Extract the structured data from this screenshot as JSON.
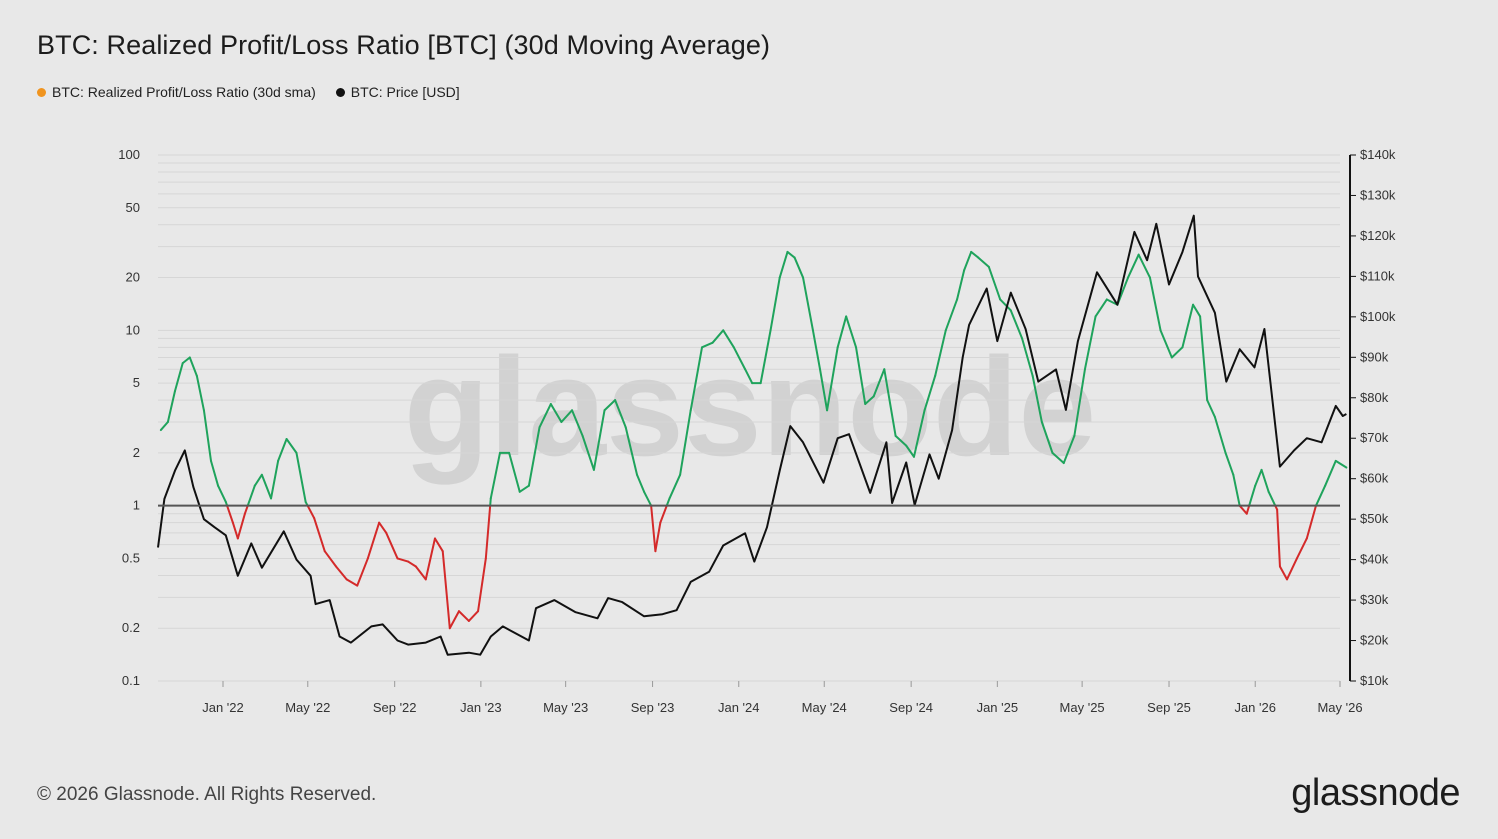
{
  "title": "BTC: Realized Profit/Loss Ratio [BTC] (30d Moving Average)",
  "legend": [
    {
      "label": "BTC: Realized Profit/Loss Ratio (30d sma)",
      "color": "#f0941f"
    },
    {
      "label": "BTC: Price [USD]",
      "color": "#111111"
    }
  ],
  "footer": "© 2026 Glassnode. All Rights Reserved.",
  "brand": "glassnode",
  "watermark": "glassnode",
  "chart_data": {
    "type": "line",
    "x_ticks": [
      "Jan '22",
      "May '22",
      "Sep '22",
      "Jan '23",
      "May '23",
      "Sep '23",
      "Jan '24",
      "May '24",
      "Sep '24",
      "Jan '25",
      "May '25",
      "Sep '25",
      "Jan '26",
      "May '26"
    ],
    "x_tick_dates": [
      "2022-01",
      "2022-05",
      "2022-09",
      "2023-01",
      "2023-05",
      "2023-09",
      "2024-01",
      "2024-05",
      "2024-09",
      "2025-01",
      "2025-05",
      "2025-09",
      "2026-01",
      "2026-05"
    ],
    "x_range": [
      "2021-10",
      "2026-05"
    ],
    "left_axis": {
      "scale": "log",
      "range": [
        0.1,
        100
      ],
      "ticks": [
        {
          "v": 100,
          "label": "100"
        },
        {
          "v": 50,
          "label": "50"
        },
        {
          "v": 20,
          "label": "20"
        },
        {
          "v": 10,
          "label": "10"
        },
        {
          "v": 5,
          "label": "5"
        },
        {
          "v": 2,
          "label": "2"
        },
        {
          "v": 1,
          "label": "1"
        },
        {
          "v": 0.5,
          "label": "0.5"
        },
        {
          "v": 0.2,
          "label": "0.2"
        },
        {
          "v": 0.1,
          "label": "0.1"
        }
      ]
    },
    "right_axis": {
      "scale": "linear",
      "range": [
        10000,
        140000
      ],
      "ticks": [
        {
          "v": 140000,
          "label": "$140k"
        },
        {
          "v": 130000,
          "label": "$130k"
        },
        {
          "v": 120000,
          "label": "$120k"
        },
        {
          "v": 110000,
          "label": "$110k"
        },
        {
          "v": 100000,
          "label": "$100k"
        },
        {
          "v": 90000,
          "label": "$90k"
        },
        {
          "v": 80000,
          "label": "$80k"
        },
        {
          "v": 70000,
          "label": "$70k"
        },
        {
          "v": 60000,
          "label": "$60k"
        },
        {
          "v": 50000,
          "label": "$50k"
        },
        {
          "v": 40000,
          "label": "$40k"
        },
        {
          "v": 30000,
          "label": "$30k"
        },
        {
          "v": 20000,
          "label": "$20k"
        },
        {
          "v": 10000,
          "label": "$10k"
        }
      ]
    },
    "reference_line": {
      "value": 1,
      "axis": "left",
      "color": "#555555"
    },
    "colors": {
      "above_one": "#1fa35c",
      "below_one": "#d42a2a",
      "price": "#111111"
    },
    "series": [
      {
        "name": "BTC: Realized Profit/Loss Ratio (30d sma)",
        "axis": "left",
        "points": [
          [
            "2021-10-05",
            2.7
          ],
          [
            "2021-10-15",
            3.0
          ],
          [
            "2021-10-25",
            4.5
          ],
          [
            "2021-11-05",
            6.5
          ],
          [
            "2021-11-15",
            7.0
          ],
          [
            "2021-11-25",
            5.5
          ],
          [
            "2021-12-05",
            3.5
          ],
          [
            "2021-12-15",
            1.8
          ],
          [
            "2021-12-25",
            1.3
          ],
          [
            "2022-01-05",
            1.05
          ],
          [
            "2022-01-15",
            0.8
          ],
          [
            "2022-01-22",
            0.65
          ],
          [
            "2022-02-01",
            0.9
          ],
          [
            "2022-02-15",
            1.3
          ],
          [
            "2022-02-25",
            1.5
          ],
          [
            "2022-03-10",
            1.1
          ],
          [
            "2022-03-20",
            1.8
          ],
          [
            "2022-04-01",
            2.4
          ],
          [
            "2022-04-15",
            2.0
          ],
          [
            "2022-04-28",
            1.05
          ],
          [
            "2022-05-10",
            0.85
          ],
          [
            "2022-05-25",
            0.55
          ],
          [
            "2022-06-10",
            0.45
          ],
          [
            "2022-06-25",
            0.38
          ],
          [
            "2022-07-10",
            0.35
          ],
          [
            "2022-07-25",
            0.5
          ],
          [
            "2022-08-10",
            0.8
          ],
          [
            "2022-08-20",
            0.7
          ],
          [
            "2022-09-05",
            0.5
          ],
          [
            "2022-09-20",
            0.48
          ],
          [
            "2022-10-01",
            0.45
          ],
          [
            "2022-10-15",
            0.38
          ],
          [
            "2022-10-28",
            0.65
          ],
          [
            "2022-11-08",
            0.55
          ],
          [
            "2022-11-18",
            0.2
          ],
          [
            "2022-12-01",
            0.25
          ],
          [
            "2022-12-15",
            0.22
          ],
          [
            "2022-12-28",
            0.25
          ],
          [
            "2023-01-08",
            0.5
          ],
          [
            "2023-01-15",
            1.1
          ],
          [
            "2023-01-28",
            2.0
          ],
          [
            "2023-02-10",
            2.0
          ],
          [
            "2023-02-25",
            1.2
          ],
          [
            "2023-03-10",
            1.3
          ],
          [
            "2023-03-25",
            2.8
          ],
          [
            "2023-04-10",
            3.8
          ],
          [
            "2023-04-25",
            3.0
          ],
          [
            "2023-05-10",
            3.5
          ],
          [
            "2023-05-25",
            2.5
          ],
          [
            "2023-06-10",
            1.6
          ],
          [
            "2023-06-25",
            3.5
          ],
          [
            "2023-07-10",
            4.0
          ],
          [
            "2023-07-25",
            2.8
          ],
          [
            "2023-08-10",
            1.5
          ],
          [
            "2023-08-20",
            1.2
          ],
          [
            "2023-08-30",
            1.0
          ],
          [
            "2023-09-05",
            0.55
          ],
          [
            "2023-09-12",
            0.8
          ],
          [
            "2023-09-25",
            1.1
          ],
          [
            "2023-10-10",
            1.5
          ],
          [
            "2023-10-25",
            3.5
          ],
          [
            "2023-11-10",
            8.0
          ],
          [
            "2023-11-25",
            8.5
          ],
          [
            "2023-12-10",
            10.0
          ],
          [
            "2023-12-25",
            8.0
          ],
          [
            "2024-01-10",
            6.0
          ],
          [
            "2024-01-20",
            5.0
          ],
          [
            "2024-02-01",
            5.0
          ],
          [
            "2024-02-15",
            10.0
          ],
          [
            "2024-02-28",
            20.0
          ],
          [
            "2024-03-10",
            28.0
          ],
          [
            "2024-03-20",
            26.0
          ],
          [
            "2024-04-01",
            20.0
          ],
          [
            "2024-04-15",
            10.0
          ],
          [
            "2024-04-25",
            6.0
          ],
          [
            "2024-05-05",
            3.5
          ],
          [
            "2024-05-20",
            8.0
          ],
          [
            "2024-06-01",
            12.0
          ],
          [
            "2024-06-15",
            8.0
          ],
          [
            "2024-06-28",
            3.8
          ],
          [
            "2024-07-10",
            4.2
          ],
          [
            "2024-07-25",
            6.0
          ],
          [
            "2024-08-10",
            2.5
          ],
          [
            "2024-08-25",
            2.2
          ],
          [
            "2024-09-05",
            1.9
          ],
          [
            "2024-09-20",
            3.5
          ],
          [
            "2024-10-05",
            5.5
          ],
          [
            "2024-10-20",
            10.0
          ],
          [
            "2024-11-05",
            15.0
          ],
          [
            "2024-11-15",
            22.0
          ],
          [
            "2024-11-25",
            28.0
          ],
          [
            "2024-12-05",
            26.0
          ],
          [
            "2024-12-20",
            23.0
          ],
          [
            "2025-01-05",
            15.0
          ],
          [
            "2025-01-20",
            13.0
          ],
          [
            "2025-02-05",
            9.0
          ],
          [
            "2025-02-20",
            5.5
          ],
          [
            "2025-03-05",
            3.0
          ],
          [
            "2025-03-20",
            2.0
          ],
          [
            "2025-04-05",
            1.75
          ],
          [
            "2025-04-20",
            2.5
          ],
          [
            "2025-05-05",
            6.0
          ],
          [
            "2025-05-20",
            12.0
          ],
          [
            "2025-06-05",
            15.0
          ],
          [
            "2025-06-20",
            14.0
          ],
          [
            "2025-07-05",
            20.0
          ],
          [
            "2025-07-20",
            27.0
          ],
          [
            "2025-08-05",
            20.0
          ],
          [
            "2025-08-20",
            10.0
          ],
          [
            "2025-09-05",
            7.0
          ],
          [
            "2025-09-20",
            8.0
          ],
          [
            "2025-10-05",
            14.0
          ],
          [
            "2025-10-15",
            12.0
          ],
          [
            "2025-10-25",
            4.0
          ],
          [
            "2025-11-05",
            3.2
          ],
          [
            "2025-11-20",
            2.0
          ],
          [
            "2025-12-01",
            1.5
          ],
          [
            "2025-12-10",
            1.0
          ],
          [
            "2025-12-20",
            0.9
          ],
          [
            "2026-01-01",
            1.3
          ],
          [
            "2026-01-10",
            1.6
          ],
          [
            "2026-01-20",
            1.2
          ],
          [
            "2026-02-01",
            0.95
          ],
          [
            "2026-02-05",
            0.45
          ],
          [
            "2026-02-15",
            0.38
          ],
          [
            "2026-03-01",
            0.5
          ],
          [
            "2026-03-15",
            0.65
          ],
          [
            "2026-03-28",
            1.0
          ],
          [
            "2026-04-10",
            1.3
          ],
          [
            "2026-04-25",
            1.8
          ],
          [
            "2026-05-10",
            1.65
          ]
        ]
      },
      {
        "name": "BTC: Price [USD]",
        "axis": "right",
        "points": [
          [
            "2021-10-01",
            43000
          ],
          [
            "2021-10-10",
            55000
          ],
          [
            "2021-10-25",
            62000
          ],
          [
            "2021-11-08",
            67000
          ],
          [
            "2021-11-20",
            58000
          ],
          [
            "2021-12-05",
            50000
          ],
          [
            "2021-12-20",
            48000
          ],
          [
            "2022-01-05",
            46000
          ],
          [
            "2022-01-22",
            36000
          ],
          [
            "2022-02-10",
            44000
          ],
          [
            "2022-02-25",
            38000
          ],
          [
            "2022-03-28",
            47000
          ],
          [
            "2022-04-15",
            40000
          ],
          [
            "2022-05-05",
            36000
          ],
          [
            "2022-05-12",
            29000
          ],
          [
            "2022-06-01",
            30000
          ],
          [
            "2022-06-15",
            21000
          ],
          [
            "2022-07-01",
            19500
          ],
          [
            "2022-07-30",
            23500
          ],
          [
            "2022-08-15",
            24000
          ],
          [
            "2022-09-05",
            20000
          ],
          [
            "2022-09-20",
            19000
          ],
          [
            "2022-10-15",
            19500
          ],
          [
            "2022-11-05",
            21000
          ],
          [
            "2022-11-15",
            16500
          ],
          [
            "2022-12-15",
            17000
          ],
          [
            "2022-12-31",
            16500
          ],
          [
            "2023-01-15",
            21000
          ],
          [
            "2023-02-01",
            23500
          ],
          [
            "2023-03-10",
            20000
          ],
          [
            "2023-03-20",
            28000
          ],
          [
            "2023-04-15",
            30000
          ],
          [
            "2023-05-15",
            27000
          ],
          [
            "2023-06-15",
            25500
          ],
          [
            "2023-06-30",
            30500
          ],
          [
            "2023-07-20",
            29500
          ],
          [
            "2023-08-20",
            26000
          ],
          [
            "2023-09-15",
            26500
          ],
          [
            "2023-10-05",
            27500
          ],
          [
            "2023-10-25",
            34500
          ],
          [
            "2023-11-20",
            37000
          ],
          [
            "2023-12-10",
            43500
          ],
          [
            "2024-01-10",
            46500
          ],
          [
            "2024-01-23",
            39500
          ],
          [
            "2024-02-10",
            48000
          ],
          [
            "2024-02-28",
            62000
          ],
          [
            "2024-03-14",
            73000
          ],
          [
            "2024-04-01",
            69000
          ],
          [
            "2024-04-30",
            59000
          ],
          [
            "2024-05-20",
            70000
          ],
          [
            "2024-06-05",
            71000
          ],
          [
            "2024-07-05",
            56500
          ],
          [
            "2024-07-28",
            69000
          ],
          [
            "2024-08-05",
            54000
          ],
          [
            "2024-08-25",
            64000
          ],
          [
            "2024-09-06",
            53500
          ],
          [
            "2024-09-27",
            66000
          ],
          [
            "2024-10-10",
            60000
          ],
          [
            "2024-10-29",
            72000
          ],
          [
            "2024-11-13",
            90000
          ],
          [
            "2024-11-22",
            98000
          ],
          [
            "2024-12-17",
            107000
          ],
          [
            "2025-01-01",
            94000
          ],
          [
            "2025-01-20",
            106000
          ],
          [
            "2025-02-10",
            97000
          ],
          [
            "2025-02-28",
            84000
          ],
          [
            "2025-03-25",
            87000
          ],
          [
            "2025-04-08",
            77000
          ],
          [
            "2025-04-25",
            94000
          ],
          [
            "2025-05-22",
            111000
          ],
          [
            "2025-06-20",
            103000
          ],
          [
            "2025-07-14",
            121000
          ],
          [
            "2025-08-01",
            114000
          ],
          [
            "2025-08-14",
            123000
          ],
          [
            "2025-09-01",
            108000
          ],
          [
            "2025-09-20",
            116000
          ],
          [
            "2025-10-06",
            125000
          ],
          [
            "2025-10-12",
            110000
          ],
          [
            "2025-11-05",
            101000
          ],
          [
            "2025-11-21",
            84000
          ],
          [
            "2025-12-10",
            92000
          ],
          [
            "2025-12-31",
            87500
          ],
          [
            "2026-01-14",
            97000
          ],
          [
            "2026-02-05",
            63000
          ],
          [
            "2026-02-25",
            67000
          ],
          [
            "2026-03-15",
            70000
          ],
          [
            "2026-04-05",
            69000
          ],
          [
            "2026-04-25",
            78000
          ],
          [
            "2026-05-05",
            75500
          ],
          [
            "2026-05-10",
            76000
          ]
        ]
      }
    ]
  }
}
